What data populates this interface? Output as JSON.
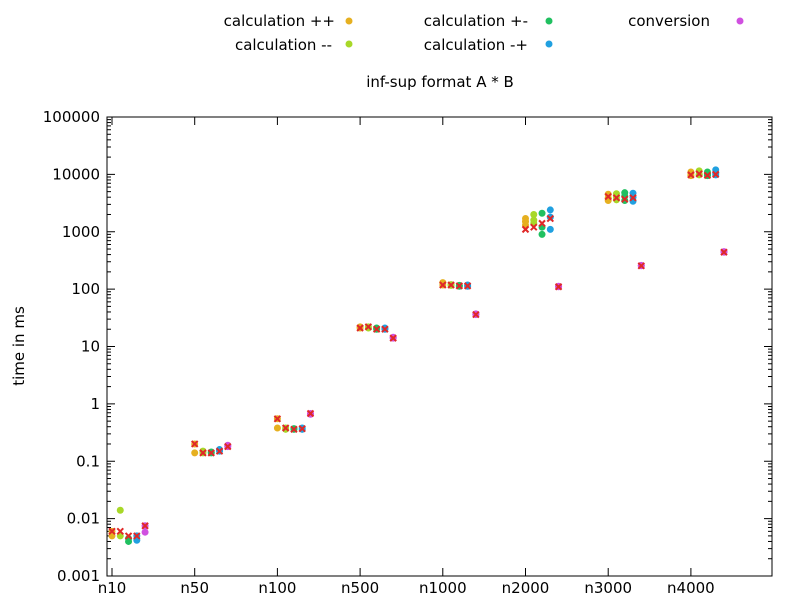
{
  "chart_data": {
    "type": "scatter",
    "title": "inf-sup format A * B",
    "ylabel": "time in ms",
    "xlabel": "",
    "y_scale": "log",
    "ylim": [
      0.001,
      100000
    ],
    "y_ticks": [
      "0.001",
      "0.01",
      "0.1",
      "1",
      "10",
      "100",
      "1000",
      "10000",
      "100000"
    ],
    "categories": [
      "n10",
      "n50",
      "n100",
      "n500",
      "n1000",
      "n2000",
      "n3000",
      "n4000"
    ],
    "legend_placement": "top",
    "grid": false,
    "series": [
      {
        "name": "calculation ++",
        "color": "#e6b020",
        "points": [
          {
            "x": 0,
            "y": 0.006
          },
          {
            "x": 0,
            "y": 0.005
          },
          {
            "x": 1,
            "y": 0.2
          },
          {
            "x": 1,
            "y": 0.14
          },
          {
            "x": 2,
            "y": 0.55
          },
          {
            "x": 2,
            "y": 0.38
          },
          {
            "x": 3,
            "y": 21
          },
          {
            "x": 3,
            "y": 22
          },
          {
            "x": 4,
            "y": 130
          },
          {
            "x": 4,
            "y": 118
          },
          {
            "x": 5,
            "y": 1700
          },
          {
            "x": 5,
            "y": 1500
          },
          {
            "x": 5,
            "y": 1300
          },
          {
            "x": 6,
            "y": 4500
          },
          {
            "x": 6,
            "y": 3900
          },
          {
            "x": 6,
            "y": 3500
          },
          {
            "x": 7,
            "y": 11000
          },
          {
            "x": 7,
            "y": 9500
          },
          {
            "x": 7,
            "y": 10500
          }
        ]
      },
      {
        "name": "calculation --",
        "color": "#a8d828",
        "points": [
          {
            "x": 0.1,
            "y": 0.014
          },
          {
            "x": 0.1,
            "y": 0.005
          },
          {
            "x": 1.1,
            "y": 0.14
          },
          {
            "x": 1.1,
            "y": 0.15
          },
          {
            "x": 2.1,
            "y": 0.38
          },
          {
            "x": 2.1,
            "y": 0.36
          },
          {
            "x": 3.1,
            "y": 22
          },
          {
            "x": 3.1,
            "y": 21
          },
          {
            "x": 4.1,
            "y": 120
          },
          {
            "x": 4.1,
            "y": 116
          },
          {
            "x": 5.1,
            "y": 2000
          },
          {
            "x": 5.1,
            "y": 1600
          },
          {
            "x": 5.1,
            "y": 1400
          },
          {
            "x": 6.1,
            "y": 4600
          },
          {
            "x": 6.1,
            "y": 4000
          },
          {
            "x": 6.1,
            "y": 3600
          },
          {
            "x": 7.1,
            "y": 11500
          },
          {
            "x": 7.1,
            "y": 10000
          },
          {
            "x": 7.1,
            "y": 9800
          }
        ]
      },
      {
        "name": "calculation +-",
        "color": "#20c060",
        "points": [
          {
            "x": 0.2,
            "y": 0.004
          },
          {
            "x": 0.2,
            "y": 0.0045
          },
          {
            "x": 1.2,
            "y": 0.14
          },
          {
            "x": 1.2,
            "y": 0.145
          },
          {
            "x": 2.2,
            "y": 0.37
          },
          {
            "x": 2.2,
            "y": 0.36
          },
          {
            "x": 3.2,
            "y": 20
          },
          {
            "x": 3.2,
            "y": 21
          },
          {
            "x": 4.2,
            "y": 116
          },
          {
            "x": 4.2,
            "y": 112
          },
          {
            "x": 5.2,
            "y": 2100
          },
          {
            "x": 5.2,
            "y": 1200
          },
          {
            "x": 5.2,
            "y": 900
          },
          {
            "x": 6.2,
            "y": 4800
          },
          {
            "x": 6.2,
            "y": 4200
          },
          {
            "x": 6.2,
            "y": 3500
          },
          {
            "x": 7.2,
            "y": 11000
          },
          {
            "x": 7.2,
            "y": 10000
          },
          {
            "x": 7.2,
            "y": 9500
          }
        ]
      },
      {
        "name": "calculation -+",
        "color": "#20a0e0",
        "points": [
          {
            "x": 0.3,
            "y": 0.0042
          },
          {
            "x": 0.3,
            "y": 0.005
          },
          {
            "x": 1.3,
            "y": 0.16
          },
          {
            "x": 1.3,
            "y": 0.15
          },
          {
            "x": 2.3,
            "y": 0.38
          },
          {
            "x": 2.3,
            "y": 0.36
          },
          {
            "x": 3.3,
            "y": 20
          },
          {
            "x": 3.3,
            "y": 21
          },
          {
            "x": 4.3,
            "y": 118
          },
          {
            "x": 4.3,
            "y": 112
          },
          {
            "x": 5.3,
            "y": 2400
          },
          {
            "x": 5.3,
            "y": 1800
          },
          {
            "x": 5.3,
            "y": 1100
          },
          {
            "x": 6.3,
            "y": 4700
          },
          {
            "x": 6.3,
            "y": 4000
          },
          {
            "x": 6.3,
            "y": 3400
          },
          {
            "x": 7.3,
            "y": 12000
          },
          {
            "x": 7.3,
            "y": 10500
          },
          {
            "x": 7.3,
            "y": 9800
          }
        ]
      },
      {
        "name": "conversion",
        "color": "#d050e0",
        "points": [
          {
            "x": 0.4,
            "y": 0.0058
          },
          {
            "x": 0.4,
            "y": 0.0075
          },
          {
            "x": 1.4,
            "y": 0.18
          },
          {
            "x": 1.4,
            "y": 0.19
          },
          {
            "x": 2.4,
            "y": 0.68
          },
          {
            "x": 2.4,
            "y": 0.66
          },
          {
            "x": 3.4,
            "y": 14
          },
          {
            "x": 3.4,
            "y": 14.5
          },
          {
            "x": 4.4,
            "y": 36
          },
          {
            "x": 4.4,
            "y": 37
          },
          {
            "x": 5.4,
            "y": 112
          },
          {
            "x": 5.4,
            "y": 110
          },
          {
            "x": 6.4,
            "y": 255
          },
          {
            "x": 6.4,
            "y": 260
          },
          {
            "x": 7.4,
            "y": 440
          },
          {
            "x": 7.4,
            "y": 450
          }
        ]
      },
      {
        "name": "",
        "color": "#e02828",
        "marker": "cross",
        "points": [
          {
            "x": 0,
            "y": 0.006
          },
          {
            "x": 0.1,
            "y": 0.006
          },
          {
            "x": 0.2,
            "y": 0.005
          },
          {
            "x": 0.3,
            "y": 0.005
          },
          {
            "x": 0.4,
            "y": 0.0075
          },
          {
            "x": 1,
            "y": 0.2
          },
          {
            "x": 1.1,
            "y": 0.14
          },
          {
            "x": 1.2,
            "y": 0.14
          },
          {
            "x": 1.3,
            "y": 0.15
          },
          {
            "x": 1.4,
            "y": 0.18
          },
          {
            "x": 2,
            "y": 0.55
          },
          {
            "x": 2.1,
            "y": 0.38
          },
          {
            "x": 2.2,
            "y": 0.36
          },
          {
            "x": 2.3,
            "y": 0.37
          },
          {
            "x": 2.4,
            "y": 0.68
          },
          {
            "x": 3,
            "y": 21
          },
          {
            "x": 3.1,
            "y": 22
          },
          {
            "x": 3.2,
            "y": 20
          },
          {
            "x": 3.3,
            "y": 20
          },
          {
            "x": 3.4,
            "y": 14
          },
          {
            "x": 4,
            "y": 118
          },
          {
            "x": 4.1,
            "y": 118
          },
          {
            "x": 4.2,
            "y": 114
          },
          {
            "x": 4.3,
            "y": 114
          },
          {
            "x": 4.4,
            "y": 36
          },
          {
            "x": 5,
            "y": 1100
          },
          {
            "x": 5.1,
            "y": 1200
          },
          {
            "x": 5.2,
            "y": 1400
          },
          {
            "x": 5.3,
            "y": 1700
          },
          {
            "x": 5.4,
            "y": 110
          },
          {
            "x": 6,
            "y": 4100
          },
          {
            "x": 6.1,
            "y": 3900
          },
          {
            "x": 6.2,
            "y": 3700
          },
          {
            "x": 6.3,
            "y": 3900
          },
          {
            "x": 6.4,
            "y": 255
          },
          {
            "x": 7,
            "y": 9800
          },
          {
            "x": 7.1,
            "y": 10200
          },
          {
            "x": 7.2,
            "y": 9600
          },
          {
            "x": 7.3,
            "y": 10000
          },
          {
            "x": 7.4,
            "y": 440
          }
        ]
      }
    ]
  }
}
